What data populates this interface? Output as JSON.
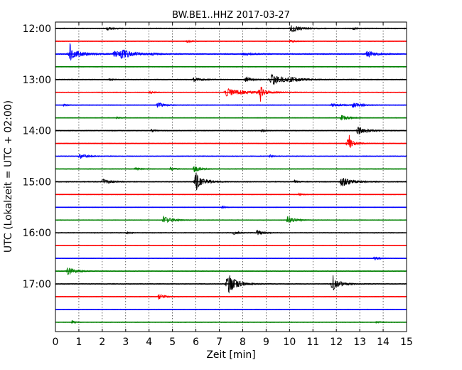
{
  "title": "BW.BE1..HHZ 2017-03-27",
  "chart_data": {
    "type": "line",
    "title": "BW.BE1..HHZ 2017-03-27",
    "xlabel": "Zeit  [min]",
    "ylabel": "UTC (Lokalzeit = UTC + 02:00)",
    "xlim": [
      0,
      15
    ],
    "x_ticks": [
      "0",
      "1",
      "2",
      "3",
      "4",
      "5",
      "6",
      "7",
      "8",
      "9",
      "10",
      "11",
      "12",
      "13",
      "14",
      "15"
    ],
    "y_tick_labels": [
      "12:00",
      "13:00",
      "14:00",
      "15:00",
      "16:00",
      "17:00"
    ],
    "y_tick_rows": [
      0,
      4,
      8,
      12,
      16,
      20
    ],
    "grid": "vertical dotted at each minute",
    "colors": [
      "#000000",
      "#ff0000",
      "#0000ff",
      "#008000"
    ],
    "series": [
      {
        "start": "12:00",
        "color": "#000000",
        "noise": 0.45,
        "events": [
          [
            2.2,
            0.6,
            0.22
          ],
          [
            10.05,
            1.4,
            0.35
          ],
          [
            12.7,
            0.4,
            0.15
          ]
        ]
      },
      {
        "start": "12:15",
        "color": "#ff0000",
        "noise": 0.3,
        "events": [
          [
            5.6,
            0.5,
            0.2
          ],
          [
            10.0,
            0.5,
            0.3
          ]
        ]
      },
      {
        "start": "12:30",
        "color": "#0000ff",
        "noise": 0.5,
        "events": [
          [
            0.6,
            1.6,
            0.55
          ],
          [
            0.62,
            4.4,
            0.04
          ],
          [
            2.5,
            0.9,
            0.6
          ],
          [
            2.8,
            1.3,
            0.45
          ],
          [
            4.1,
            0.4,
            0.2
          ],
          [
            8.0,
            0.4,
            0.5
          ],
          [
            13.3,
            1.2,
            0.35
          ]
        ]
      },
      {
        "start": "12:45",
        "color": "#008000",
        "noise": 0.3,
        "events": []
      },
      {
        "start": "13:00",
        "color": "#000000",
        "noise": 0.45,
        "events": [
          [
            2.3,
            0.4,
            0.15
          ],
          [
            5.9,
            0.7,
            0.3
          ],
          [
            8.1,
            0.9,
            0.25
          ],
          [
            9.2,
            1.8,
            0.6
          ],
          [
            10.0,
            0.5,
            0.5
          ]
        ]
      },
      {
        "start": "13:15",
        "color": "#ff0000",
        "noise": 0.35,
        "events": [
          [
            4.0,
            0.5,
            0.2
          ],
          [
            7.3,
            1.3,
            0.8
          ],
          [
            8.7,
            1.2,
            0.3
          ],
          [
            8.75,
            2.9,
            0.05
          ]
        ]
      },
      {
        "start": "13:30",
        "color": "#0000ff",
        "noise": 0.35,
        "events": [
          [
            0.35,
            0.4,
            0.15
          ],
          [
            4.35,
            1.1,
            0.25
          ],
          [
            11.8,
            0.5,
            0.5
          ],
          [
            12.7,
            0.9,
            0.3
          ]
        ]
      },
      {
        "start": "13:45",
        "color": "#008000",
        "noise": 0.3,
        "events": [
          [
            2.6,
            0.4,
            0.15
          ],
          [
            12.2,
            1.2,
            0.3
          ]
        ]
      },
      {
        "start": "14:00",
        "color": "#000000",
        "noise": 0.4,
        "events": [
          [
            4.1,
            0.4,
            0.2
          ],
          [
            8.8,
            0.4,
            0.15
          ],
          [
            12.9,
            1.6,
            0.35
          ]
        ]
      },
      {
        "start": "14:15",
        "color": "#ff0000",
        "noise": 0.3,
        "events": [
          [
            12.45,
            1.5,
            0.3
          ],
          [
            12.55,
            2.6,
            0.05
          ]
        ]
      },
      {
        "start": "14:30",
        "color": "#0000ff",
        "noise": 0.4,
        "events": [
          [
            1.0,
            0.8,
            0.35
          ],
          [
            9.15,
            0.6,
            0.12
          ]
        ]
      },
      {
        "start": "14:45",
        "color": "#008000",
        "noise": 0.35,
        "events": [
          [
            3.4,
            0.6,
            0.2
          ],
          [
            4.9,
            0.6,
            0.2
          ],
          [
            5.9,
            1.2,
            0.25
          ]
        ]
      },
      {
        "start": "15:00",
        "color": "#000000",
        "noise": 0.45,
        "events": [
          [
            2.0,
            1.1,
            0.3
          ],
          [
            5.95,
            2.6,
            0.35
          ],
          [
            6.0,
            3.3,
            0.05
          ],
          [
            10.2,
            0.5,
            0.2
          ],
          [
            12.2,
            1.8,
            0.4
          ]
        ]
      },
      {
        "start": "15:15",
        "color": "#ff0000",
        "noise": 0.3,
        "events": [
          [
            10.4,
            0.4,
            0.2
          ]
        ]
      },
      {
        "start": "15:30",
        "color": "#0000ff",
        "noise": 0.3,
        "events": [
          [
            7.1,
            0.5,
            0.15
          ]
        ]
      },
      {
        "start": "15:45",
        "color": "#008000",
        "noise": 0.35,
        "events": [
          [
            4.6,
            1.3,
            0.35
          ],
          [
            9.9,
            1.4,
            0.3
          ]
        ]
      },
      {
        "start": "16:00",
        "color": "#000000",
        "noise": 0.4,
        "events": [
          [
            3.0,
            0.3,
            0.2
          ],
          [
            7.6,
            0.7,
            0.2
          ],
          [
            8.6,
            0.9,
            0.25
          ]
        ]
      },
      {
        "start": "16:15",
        "color": "#ff0000",
        "noise": 0.22,
        "events": []
      },
      {
        "start": "16:30",
        "color": "#0000ff",
        "noise": 0.3,
        "events": [
          [
            13.6,
            0.6,
            0.25
          ]
        ]
      },
      {
        "start": "16:45",
        "color": "#008000",
        "noise": 0.35,
        "events": [
          [
            0.5,
            1.4,
            0.35
          ]
        ]
      },
      {
        "start": "17:00",
        "color": "#000000",
        "noise": 0.4,
        "events": [
          [
            7.3,
            2.0,
            0.4
          ],
          [
            7.4,
            2.4,
            0.3
          ],
          [
            11.8,
            2.0,
            0.35
          ],
          [
            11.85,
            2.6,
            0.05
          ]
        ]
      },
      {
        "start": "17:15",
        "color": "#ff0000",
        "noise": 0.3,
        "events": [
          [
            4.4,
            1.2,
            0.25
          ]
        ]
      },
      {
        "start": "17:30",
        "color": "#0000ff",
        "noise": 0.3,
        "events": []
      },
      {
        "start": "17:45",
        "color": "#008000",
        "noise": 0.35,
        "events": [
          [
            0.7,
            0.8,
            0.1
          ],
          [
            13.7,
            0.4,
            0.15
          ]
        ]
      }
    ]
  }
}
